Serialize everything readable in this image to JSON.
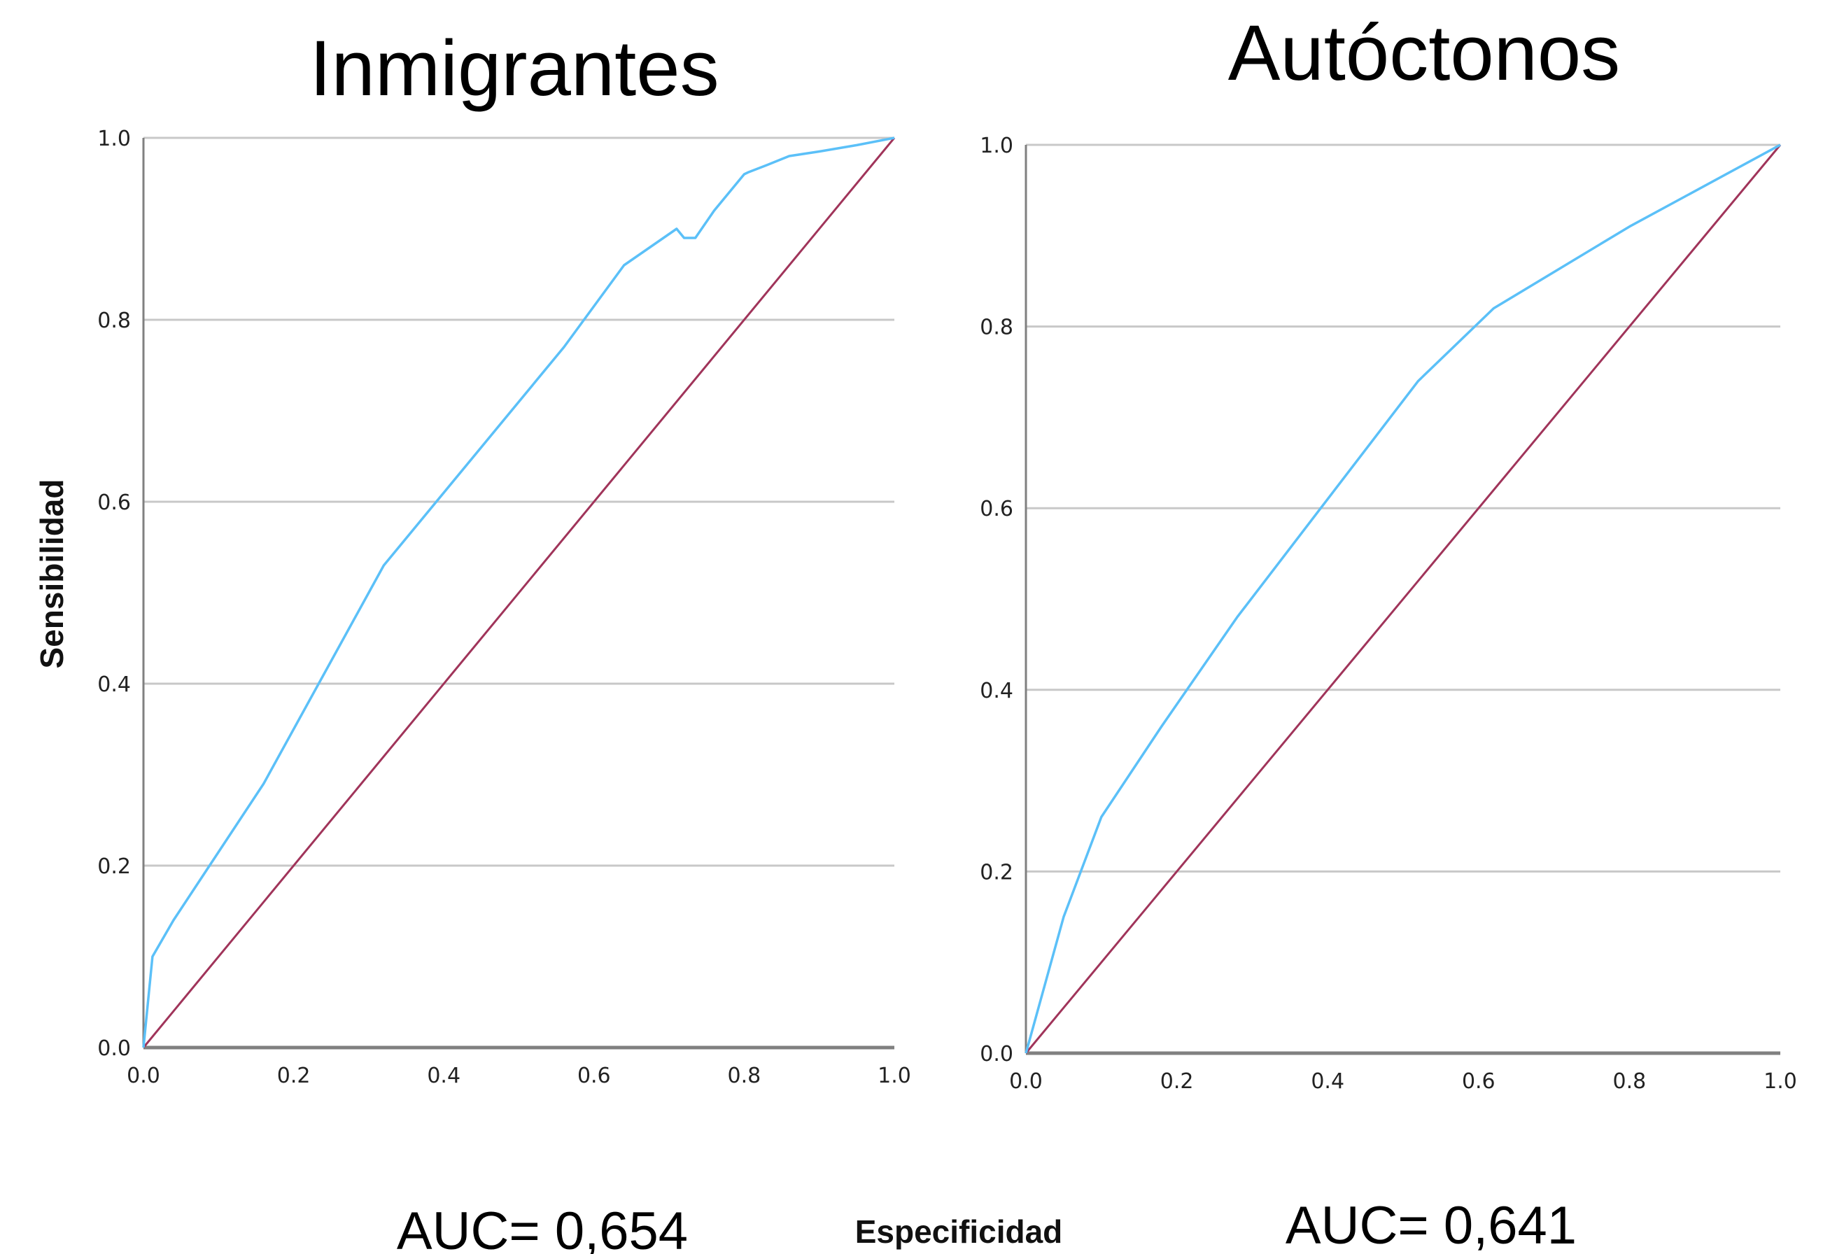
{
  "shared": {
    "ylabel": "Sensibilidad",
    "xlabel": "Especificidad",
    "ticks": [
      "0.0",
      "0.2",
      "0.4",
      "0.6",
      "0.8",
      "1.0"
    ],
    "roc_color": "#5bc0f8",
    "diagonal_color": "#a0345a",
    "grid_color": "#c8c8c8"
  },
  "chart_data": [
    {
      "type": "line",
      "title": "Inmigrantes",
      "annotation": "AUC= 0,654",
      "xlabel": "Especificidad",
      "ylabel": "Sensibilidad",
      "xlim": [
        0,
        1
      ],
      "ylim": [
        0,
        1
      ],
      "grid": "horizontal",
      "series": [
        {
          "x": [
            0.0,
            0.012,
            0.04,
            0.08,
            0.16,
            0.24,
            0.32,
            0.4,
            0.48,
            0.56,
            0.64,
            0.71,
            0.72,
            0.735,
            0.76,
            0.8,
            0.805,
            0.83,
            0.86,
            0.9,
            0.95,
            1.0
          ],
          "y": [
            0.0,
            0.1,
            0.14,
            0.19,
            0.29,
            0.41,
            0.53,
            0.61,
            0.69,
            0.77,
            0.86,
            0.9,
            0.89,
            0.89,
            0.92,
            0.96,
            0.962,
            0.97,
            0.98,
            0.985,
            0.992,
            1.0
          ]
        },
        {
          "x": [
            0,
            1
          ],
          "y": [
            0,
            1
          ]
        }
      ]
    },
    {
      "type": "line",
      "title": "Autóctonos",
      "annotation": "AUC= 0,641",
      "xlabel": "Especificidad",
      "ylabel": "Sensibilidad",
      "xlim": [
        0,
        1
      ],
      "ylim": [
        0,
        1
      ],
      "grid": "horizontal",
      "series": [
        {
          "x": [
            0.0,
            0.05,
            0.1,
            0.18,
            0.28,
            0.4,
            0.52,
            0.62,
            0.8,
            1.0
          ],
          "y": [
            0.0,
            0.15,
            0.26,
            0.36,
            0.48,
            0.61,
            0.74,
            0.82,
            0.91,
            1.0
          ]
        },
        {
          "x": [
            0,
            1
          ],
          "y": [
            0,
            1
          ]
        }
      ]
    }
  ]
}
